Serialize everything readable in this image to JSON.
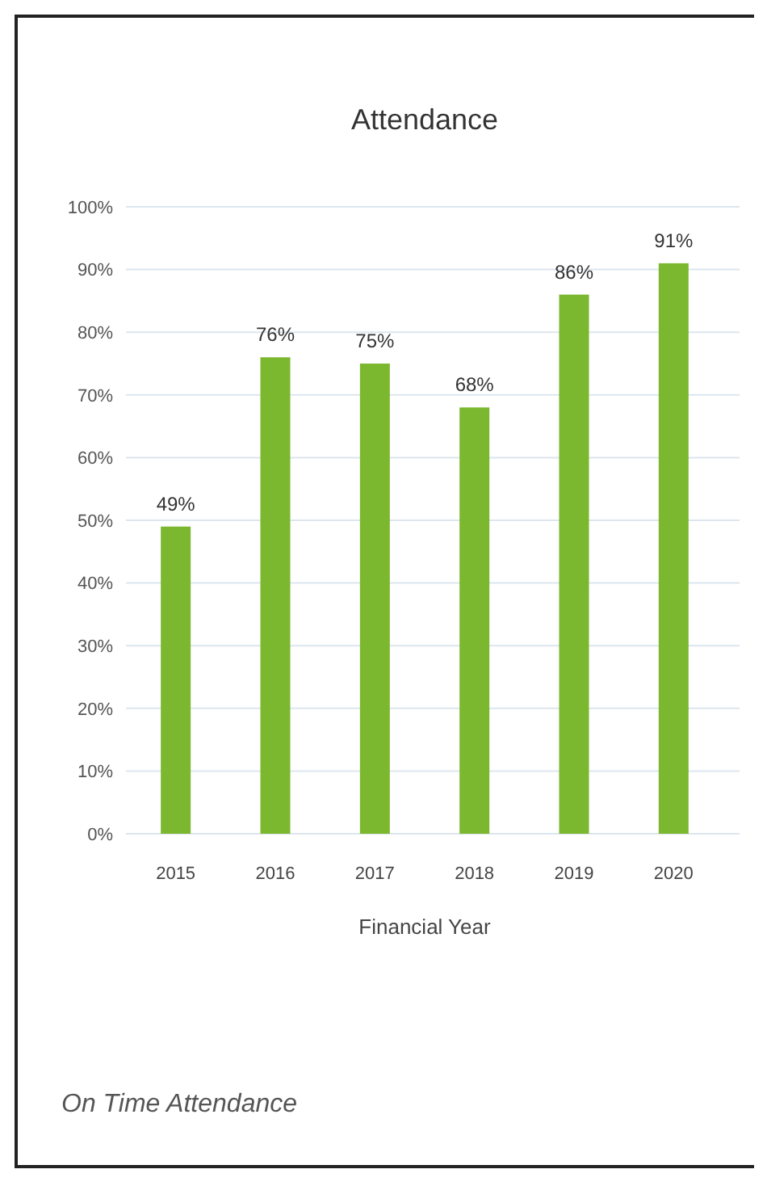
{
  "chart_data": {
    "type": "bar",
    "title": "Attendance",
    "xlabel": "Financial Year",
    "categories": [
      "2015",
      "2016",
      "2017",
      "2018",
      "2019",
      "2020"
    ],
    "values": [
      49,
      76,
      75,
      68,
      86,
      91
    ],
    "color": "#7cb82f",
    "value_labels": [
      "49%",
      "76%",
      "75%",
      "68%",
      "86%",
      "91%"
    ],
    "ylim": [
      0,
      100
    ],
    "yticks": [
      {
        "value": 0,
        "label": "0%"
      },
      {
        "value": 10,
        "label": "10%"
      },
      {
        "value": 20,
        "label": "20%"
      },
      {
        "value": 30,
        "label": "30%"
      },
      {
        "value": 40,
        "label": "40%"
      },
      {
        "value": 50,
        "label": "50%"
      },
      {
        "value": 60,
        "label": "60%"
      },
      {
        "value": 70,
        "label": "70%"
      },
      {
        "value": 80,
        "label": "80%"
      },
      {
        "value": 90,
        "label": "90%"
      },
      {
        "value": 100,
        "label": "100%"
      }
    ],
    "grid": "y",
    "annotations": [
      "On Time Attendance"
    ]
  }
}
